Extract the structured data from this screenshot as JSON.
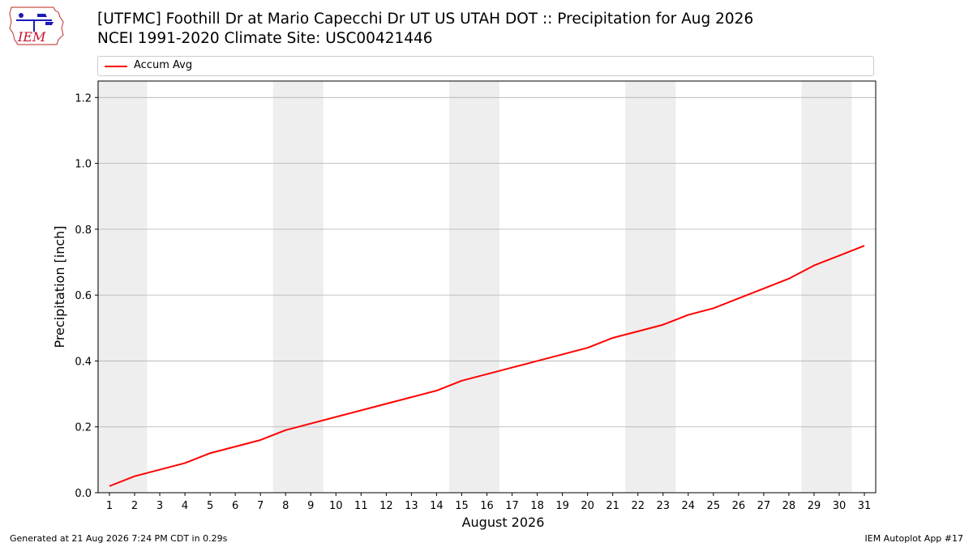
{
  "header": {
    "logo_icon": "iem-logo-icon",
    "logo_text": "IEM",
    "title_line1": "[UTFMC] Foothill Dr at Mario Capecchi Dr UT US UTAH DOT :: Precipitation for Aug 2026",
    "title_line2": "NCEI 1991-2020 Climate Site: USC00421446"
  },
  "footer": {
    "generated": "Generated at 21 Aug 2026 7:24 PM CDT in 0.29s",
    "app": "IEM Autoplot App #17"
  },
  "chart_data": {
    "type": "line",
    "title": "[UTFMC] Foothill Dr at Mario Capecchi Dr UT US UTAH DOT :: Precipitation for Aug 2026",
    "subtitle": "NCEI 1991-2020 Climate Site: USC00421446",
    "xlabel": "August 2026",
    "ylabel": "Precipitation [inch]",
    "x": [
      1,
      2,
      3,
      4,
      5,
      6,
      7,
      8,
      9,
      10,
      11,
      12,
      13,
      14,
      15,
      16,
      17,
      18,
      19,
      20,
      21,
      22,
      23,
      24,
      25,
      26,
      27,
      28,
      29,
      30,
      31
    ],
    "xlim": [
      0.55,
      31.45
    ],
    "ylim": [
      0,
      1.25
    ],
    "yticks": [
      0.0,
      0.2,
      0.4,
      0.6,
      0.8,
      1.0,
      1.2
    ],
    "ytick_labels": [
      "0.0",
      "0.2",
      "0.4",
      "0.6",
      "0.8",
      "1.0",
      "1.2"
    ],
    "grid": "horizontal",
    "legend_position": "top",
    "weekend_shading": [
      [
        0.5,
        2.5
      ],
      [
        7.5,
        9.5
      ],
      [
        14.5,
        16.5
      ],
      [
        21.5,
        23.5
      ],
      [
        28.5,
        30.5
      ]
    ],
    "colors": {
      "line": "#ff0000",
      "shade": "#eeeeee",
      "grid": "#b0b0b0"
    },
    "series": [
      {
        "name": "Accum Avg",
        "values": [
          0.02,
          0.05,
          0.07,
          0.09,
          0.12,
          0.14,
          0.16,
          0.19,
          0.21,
          0.23,
          0.25,
          0.27,
          0.29,
          0.31,
          0.34,
          0.36,
          0.38,
          0.4,
          0.42,
          0.44,
          0.47,
          0.49,
          0.51,
          0.54,
          0.56,
          0.59,
          0.62,
          0.65,
          0.69,
          0.72,
          0.75
        ]
      }
    ]
  }
}
